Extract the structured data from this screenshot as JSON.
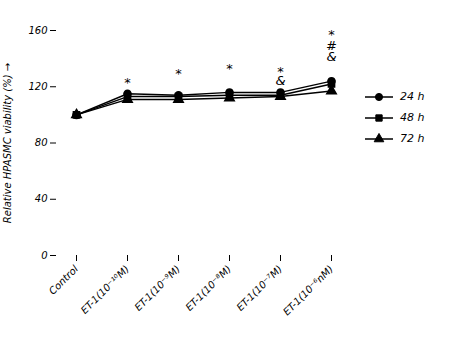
{
  "chart_data": {
    "type": "line",
    "categories": [
      "Control",
      "ET-1(10⁻¹⁰M)",
      "ET-1(10⁻⁹M)",
      "ET-1(10⁻⁸M)",
      "ET-1(10⁻⁷M)",
      "ET-1(10⁻⁶nM)"
    ],
    "series": [
      {
        "name": "24 h",
        "color": "#000000",
        "marker": "circle",
        "values": [
          100,
          115,
          114,
          116,
          116,
          124
        ]
      },
      {
        "name": "48 h",
        "color": "#000000",
        "marker": "square",
        "values": [
          100,
          113,
          113,
          114,
          114,
          122
        ]
      },
      {
        "name": "72 h",
        "color": "#000000",
        "marker": "triangle",
        "values": [
          100,
          111,
          111,
          112,
          113,
          117
        ]
      }
    ],
    "ylabel": "Relative HPASMC viability (%)",
    "ylim": [
      0,
      160
    ],
    "yticks": [
      0,
      40,
      80,
      120,
      160
    ],
    "annotations": [
      {
        "text": "*",
        "x": "ET-1(10⁻¹⁰M)",
        "y": 120
      },
      {
        "text": "*",
        "x": "ET-1(10⁻⁹M)",
        "y": 126
      },
      {
        "text": "*",
        "x": "ET-1(10⁻⁸M)",
        "y": 130
      },
      {
        "text": "*",
        "x": "ET-1(10⁻⁷M)",
        "y": 128
      },
      {
        "text": "&",
        "x": "ET-1(10⁻⁷M)",
        "y": 121
      },
      {
        "text": "*",
        "x": "ET-1(10⁻⁶nM)",
        "y": 154
      },
      {
        "text": "#",
        "x": "ET-1(10⁻⁶nM)",
        "y": 146
      },
      {
        "text": "&",
        "x": "ET-1(10⁻⁶nM)",
        "y": 138
      }
    ],
    "legend": "right",
    "grid": false
  }
}
